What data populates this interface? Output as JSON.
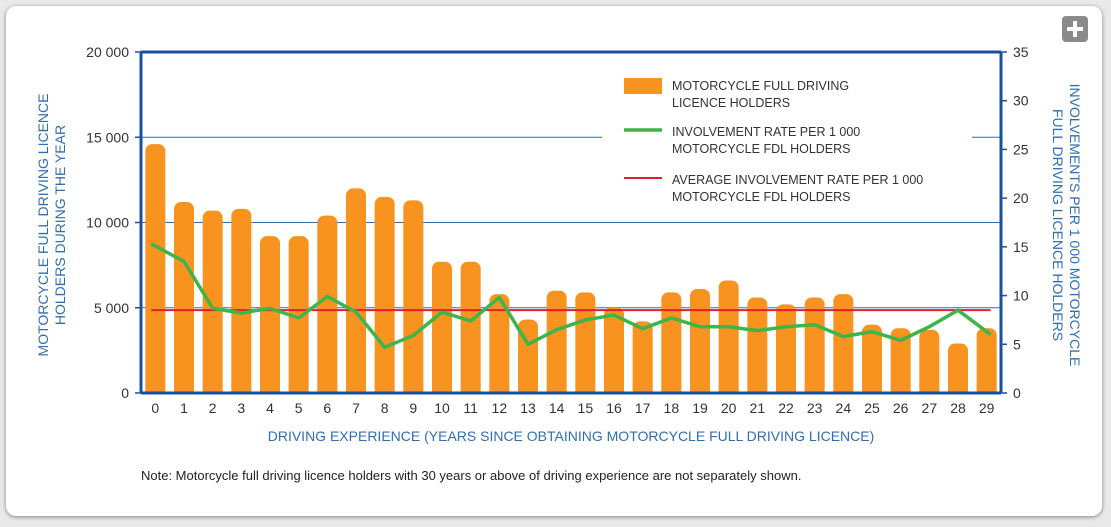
{
  "ui": {
    "expand_icon": "plus-icon",
    "note": "Note: Motorcycle full driving licence holders with 30 years or above of driving experience are not separately shown."
  },
  "chart_data": {
    "type": "bar",
    "xlabel": "DRIVING EXPERIENCE (YEARS SINCE OBTAINING MOTORCYCLE FULL DRIVING LICENCE)",
    "ylabel_left": "MOTORCYCLE FULL DRIVING LICENCE HOLDERS DURING THE YEAR",
    "ylabel_right": "INVOLVEMENTS PER 1 000 MOTORCYCLE FULL DRIVING LICENCE HOLDERS",
    "ylim_left": [
      0,
      20000
    ],
    "ylim_right": [
      0,
      35
    ],
    "yticks_left": [
      "0",
      "5 000",
      "10 000",
      "15 000",
      "20 000"
    ],
    "yticks_right": [
      "0",
      "5",
      "10",
      "15",
      "20",
      "25",
      "30",
      "35"
    ],
    "categories": [
      "0",
      "1",
      "2",
      "3",
      "4",
      "5",
      "6",
      "7",
      "8",
      "9",
      "10",
      "11",
      "12",
      "13",
      "14",
      "15",
      "16",
      "17",
      "18",
      "19",
      "20",
      "21",
      "22",
      "23",
      "24",
      "25",
      "26",
      "27",
      "28",
      "29"
    ],
    "series": [
      {
        "name": "MOTORCYCLE FULL DRIVING LICENCE HOLDERS",
        "type": "bar",
        "axis": "left",
        "color": "#f7931e",
        "values": [
          14600,
          11200,
          10700,
          10800,
          9200,
          9200,
          10400,
          12000,
          11500,
          11300,
          7700,
          7700,
          5800,
          4300,
          6000,
          5900,
          5000,
          4200,
          5900,
          6100,
          6600,
          5600,
          5200,
          5600,
          5800,
          4000,
          3800,
          3700,
          2900,
          3800
        ]
      },
      {
        "name": "INVOLVEMENT RATE PER 1 000 MOTORCYCLE FDL HOLDERS",
        "type": "line",
        "axis": "right",
        "color": "#3db54a",
        "values": [
          15.3,
          13.5,
          8.7,
          8.2,
          8.7,
          7.7,
          9.9,
          8.3,
          4.7,
          5.9,
          8.3,
          7.4,
          9.8,
          5.0,
          6.5,
          7.5,
          8.0,
          6.6,
          7.7,
          6.8,
          6.8,
          6.4,
          6.8,
          7.0,
          5.8,
          6.3,
          5.4,
          6.8,
          8.5,
          6.0
        ]
      },
      {
        "name": "AVERAGE INVOLVEMENT RATE PER 1 000 MOTORCYCLE FDL HOLDERS",
        "type": "line",
        "axis": "right",
        "color": "#e2202c",
        "values": [
          8.5,
          8.5,
          8.5,
          8.5,
          8.5,
          8.5,
          8.5,
          8.5,
          8.5,
          8.5,
          8.5,
          8.5,
          8.5,
          8.5,
          8.5,
          8.5,
          8.5,
          8.5,
          8.5,
          8.5,
          8.5,
          8.5,
          8.5,
          8.5,
          8.5,
          8.5,
          8.5,
          8.5,
          8.5,
          8.5
        ]
      }
    ],
    "legend": [
      {
        "line1": "MOTORCYCLE FULL DRIVING",
        "line2": "LICENCE HOLDERS"
      },
      {
        "line1": "INVOLVEMENT RATE PER 1 000",
        "line2": "MOTORCYCLE FDL HOLDERS"
      },
      {
        "line1": "AVERAGE INVOLVEMENT RATE PER 1 000",
        "line2": "MOTORCYCLE FDL HOLDERS"
      }
    ],
    "legend_position": "top-right",
    "grid": true
  }
}
